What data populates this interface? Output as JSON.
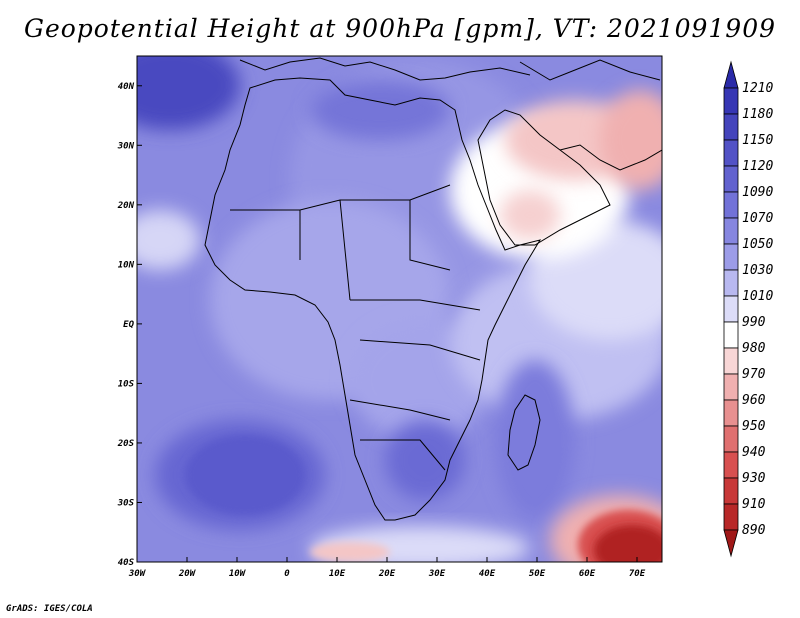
{
  "title": "Geopotential Height at 900hPa [gpm], VT: 2021091909",
  "credit": "GrADS: IGES/COLA",
  "map": {
    "region": "Africa",
    "lon_range": [
      -30,
      75
    ],
    "lat_range": [
      -40,
      45
    ],
    "lat_ticks": [
      {
        "value": 40,
        "label": "40N"
      },
      {
        "value": 30,
        "label": "30N"
      },
      {
        "value": 20,
        "label": "20N"
      },
      {
        "value": 10,
        "label": "10N"
      },
      {
        "value": 0,
        "label": "EQ"
      },
      {
        "value": -10,
        "label": "10S"
      },
      {
        "value": -20,
        "label": "20S"
      },
      {
        "value": -30,
        "label": "30S"
      },
      {
        "value": -40,
        "label": "40S"
      }
    ],
    "lon_ticks": [
      {
        "value": -30,
        "label": "30W"
      },
      {
        "value": -20,
        "label": "20W"
      },
      {
        "value": -10,
        "label": "10W"
      },
      {
        "value": 0,
        "label": "0"
      },
      {
        "value": 10,
        "label": "10E"
      },
      {
        "value": 20,
        "label": "20E"
      },
      {
        "value": 30,
        "label": "30E"
      },
      {
        "value": 40,
        "label": "40E"
      },
      {
        "value": 50,
        "label": "50E"
      },
      {
        "value": 60,
        "label": "60E"
      },
      {
        "value": 70,
        "label": "70E"
      }
    ]
  },
  "colorbar": {
    "levels": [
      "1210",
      "1180",
      "1150",
      "1120",
      "1090",
      "1070",
      "1050",
      "1030",
      "1010",
      "990",
      "980",
      "970",
      "960",
      "950",
      "940",
      "930",
      "910",
      "890"
    ],
    "colors": [
      "#2a2aa8",
      "#3636b4",
      "#4444bc",
      "#5252c6",
      "#6262cf",
      "#7272d8",
      "#8686e0",
      "#9c9ce8",
      "#b8b8f0",
      "#dcdcf8",
      "#ffffff",
      "#f8d6d6",
      "#f0b0b0",
      "#e89090",
      "#e07070",
      "#d85050",
      "#c83838",
      "#b82828",
      "#a01818"
    ]
  }
}
